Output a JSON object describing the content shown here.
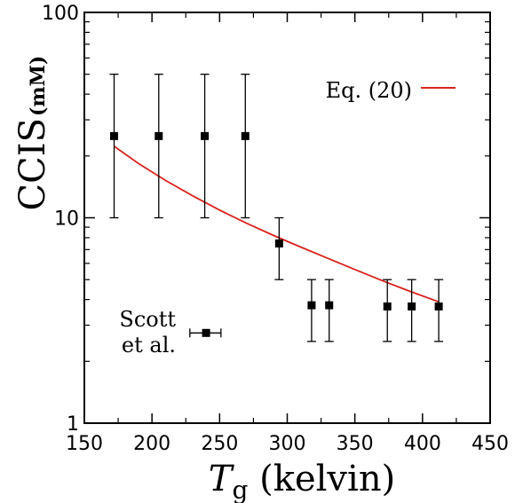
{
  "chart_data": {
    "type": "scatter",
    "x_scale": "linear",
    "y_scale": "log",
    "xlim": [
      150,
      450
    ],
    "ylim": [
      1,
      100
    ],
    "x_ticks": [
      "150",
      "200",
      "250",
      "300",
      "350",
      "400",
      "450"
    ],
    "y_ticks": [
      "1",
      "10",
      "100"
    ],
    "xlabel_symbol": "T",
    "xlabel_subscript": "g",
    "xlabel_unit": "(kelvin)",
    "ylabel_main": "CCIS",
    "ylabel_unit": "(mM)",
    "grid": false,
    "legend_position": "top-right",
    "legend_label": "Eq. (20)",
    "line_color": "#d9231c",
    "marker_color": "#000000",
    "series": [
      {
        "marker": "square",
        "points": [
          {
            "x": 172,
            "y": 25,
            "ylow": 10,
            "yhigh": 50
          },
          {
            "x": 205,
            "y": 25,
            "ylow": 10,
            "yhigh": 50
          },
          {
            "x": 239,
            "y": 25,
            "ylow": 10,
            "yhigh": 50
          },
          {
            "x": 269,
            "y": 25,
            "ylow": 10,
            "yhigh": 50
          },
          {
            "x": 294,
            "y": 7.5,
            "ylow": 5,
            "yhigh": 10
          },
          {
            "x": 318,
            "y": 3.75,
            "ylow": 2.5,
            "yhigh": 5
          },
          {
            "x": 331,
            "y": 3.75,
            "ylow": 2.5,
            "yhigh": 5
          },
          {
            "x": 374,
            "y": 3.7,
            "ylow": 2.5,
            "yhigh": 5
          },
          {
            "x": 392,
            "y": 3.7,
            "ylow": 2.5,
            "yhigh": 5
          },
          {
            "x": 412,
            "y": 3.7,
            "ylow": 2.5,
            "yhigh": 5
          }
        ]
      },
      {
        "label_lines": [
          "Scott",
          "et al."
        ],
        "marker": "square",
        "points": [
          {
            "x": 240,
            "y": 2.75,
            "xlow": 228,
            "xhigh": 251
          }
        ]
      },
      {
        "name": "Eq. (20)",
        "type": "line",
        "x": [
          172,
          190,
          210,
          230,
          250,
          270,
          290,
          310,
          330,
          350,
          370,
          390,
          412
        ],
        "y": [
          22.3,
          18.4,
          15.2,
          12.8,
          10.9,
          9.4,
          8.2,
          7.2,
          6.35,
          5.6,
          4.95,
          4.4,
          3.9
        ]
      }
    ]
  }
}
